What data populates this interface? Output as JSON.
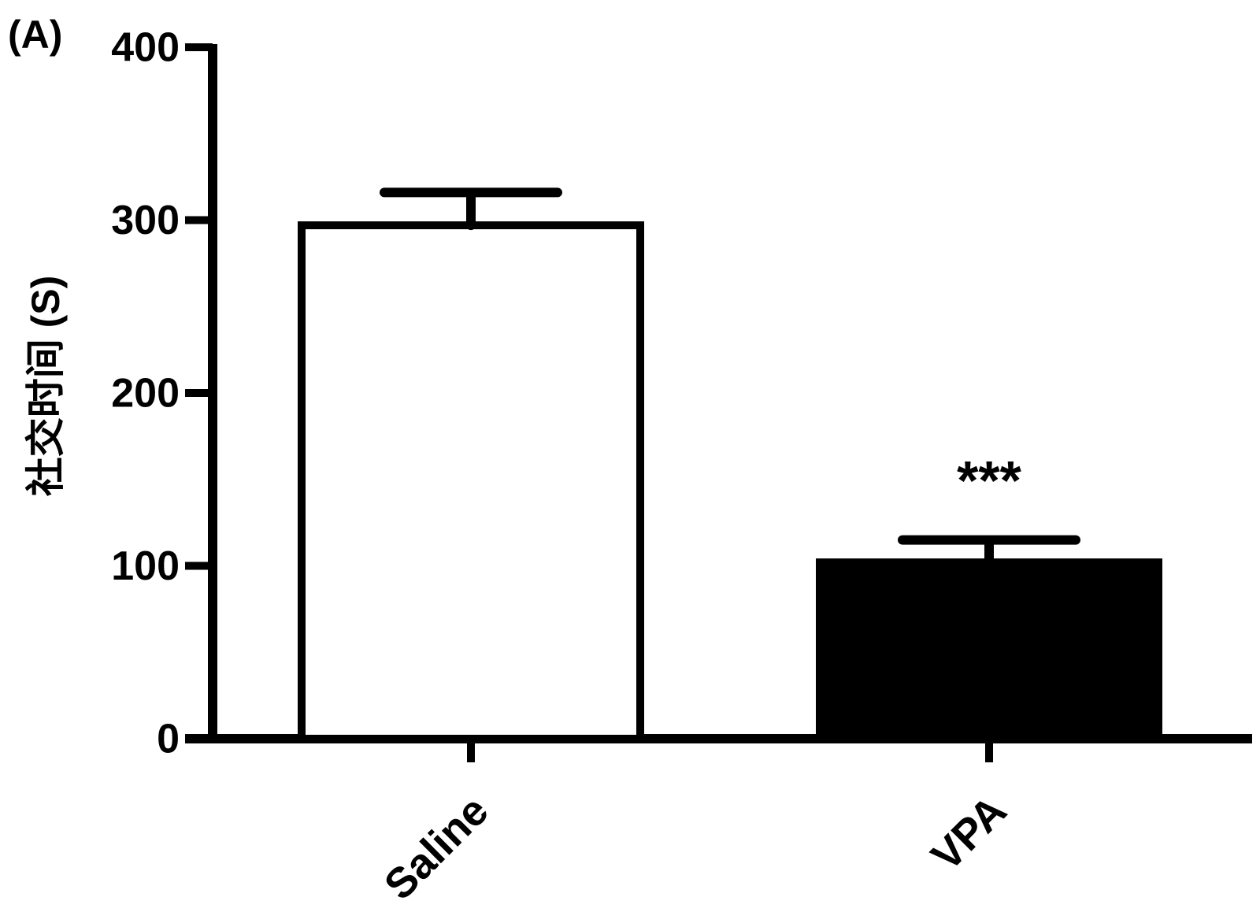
{
  "chart_data": {
    "type": "bar",
    "panel_label": "(A)",
    "ylabel": "社交时间 (S)",
    "categories": [
      "Saline",
      "VPA"
    ],
    "values": [
      297,
      102
    ],
    "errors": [
      19,
      13
    ],
    "colors": [
      "#ffffff",
      "#000000"
    ],
    "significance": [
      null,
      "***"
    ],
    "ylim": [
      0,
      400
    ],
    "yticks": [
      0,
      100,
      200,
      300,
      400
    ],
    "grid": false
  }
}
